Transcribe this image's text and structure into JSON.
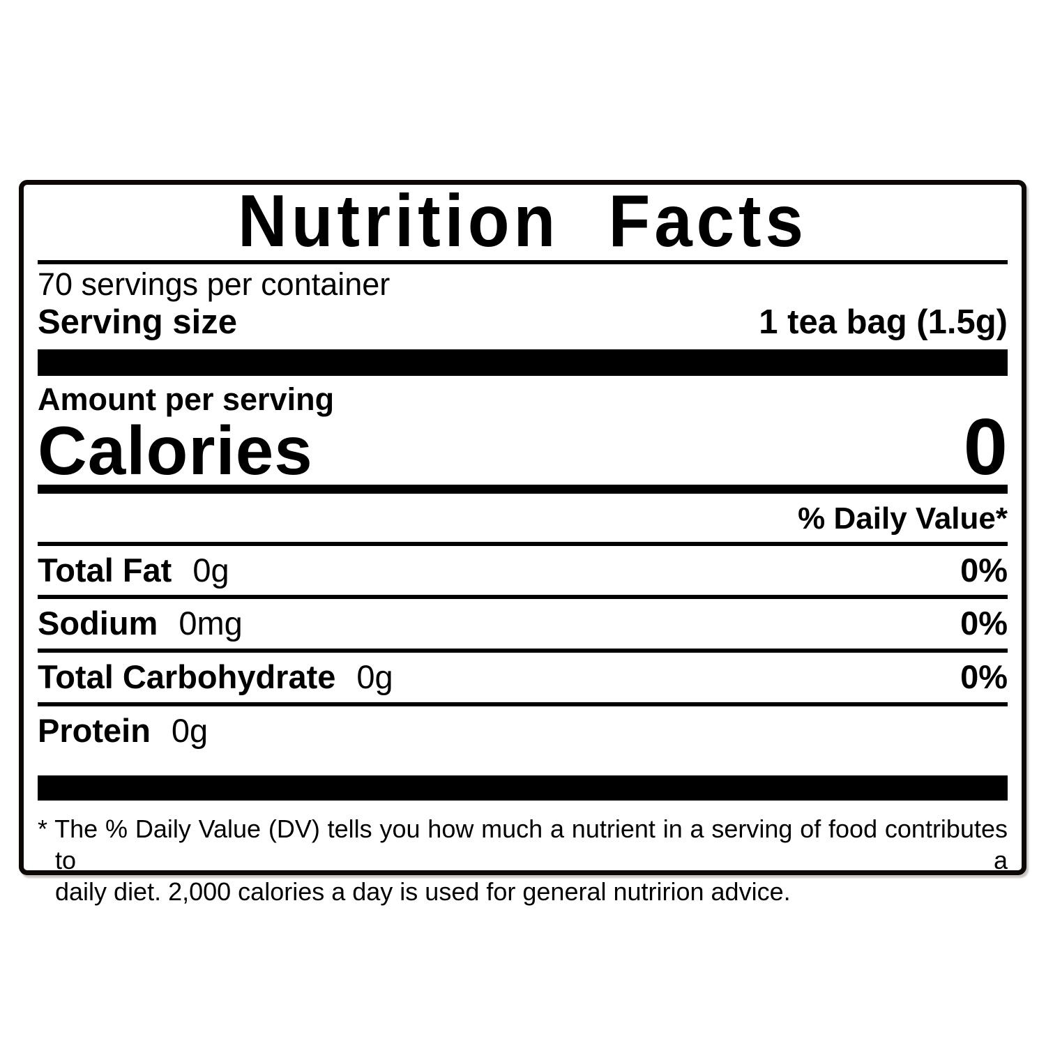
{
  "page": {
    "background": "#ffffff"
  },
  "label": {
    "title": "Nutrition Facts",
    "servings_per_container": "70 servings per container",
    "serving_size": {
      "label": "Serving size",
      "value": "1 tea bag (1.5g)"
    },
    "amount_per_serving": "Amount per serving",
    "calories": {
      "label": "Calories",
      "value": "0"
    },
    "daily_value_header": "% Daily Value*",
    "nutrients": [
      {
        "name": "Total Fat",
        "amount": "0g",
        "daily_value": "0%"
      },
      {
        "name": "Sodium",
        "amount": "0mg",
        "daily_value": "0%"
      },
      {
        "name": "Total Carbohydrate",
        "amount": "0g",
        "daily_value": "0%"
      },
      {
        "name": "Protein",
        "amount": "0g",
        "daily_value": ""
      }
    ],
    "footnote": {
      "line1": "* The % Daily Value (DV) tells you how much a nutrient in a serving of food contributes to a",
      "line2": "daily diet. 2,000 calories a day is used for general nutririon advice."
    },
    "colors": {
      "ink": "#000000",
      "border": "#0d0705",
      "background": "#ffffff"
    }
  }
}
